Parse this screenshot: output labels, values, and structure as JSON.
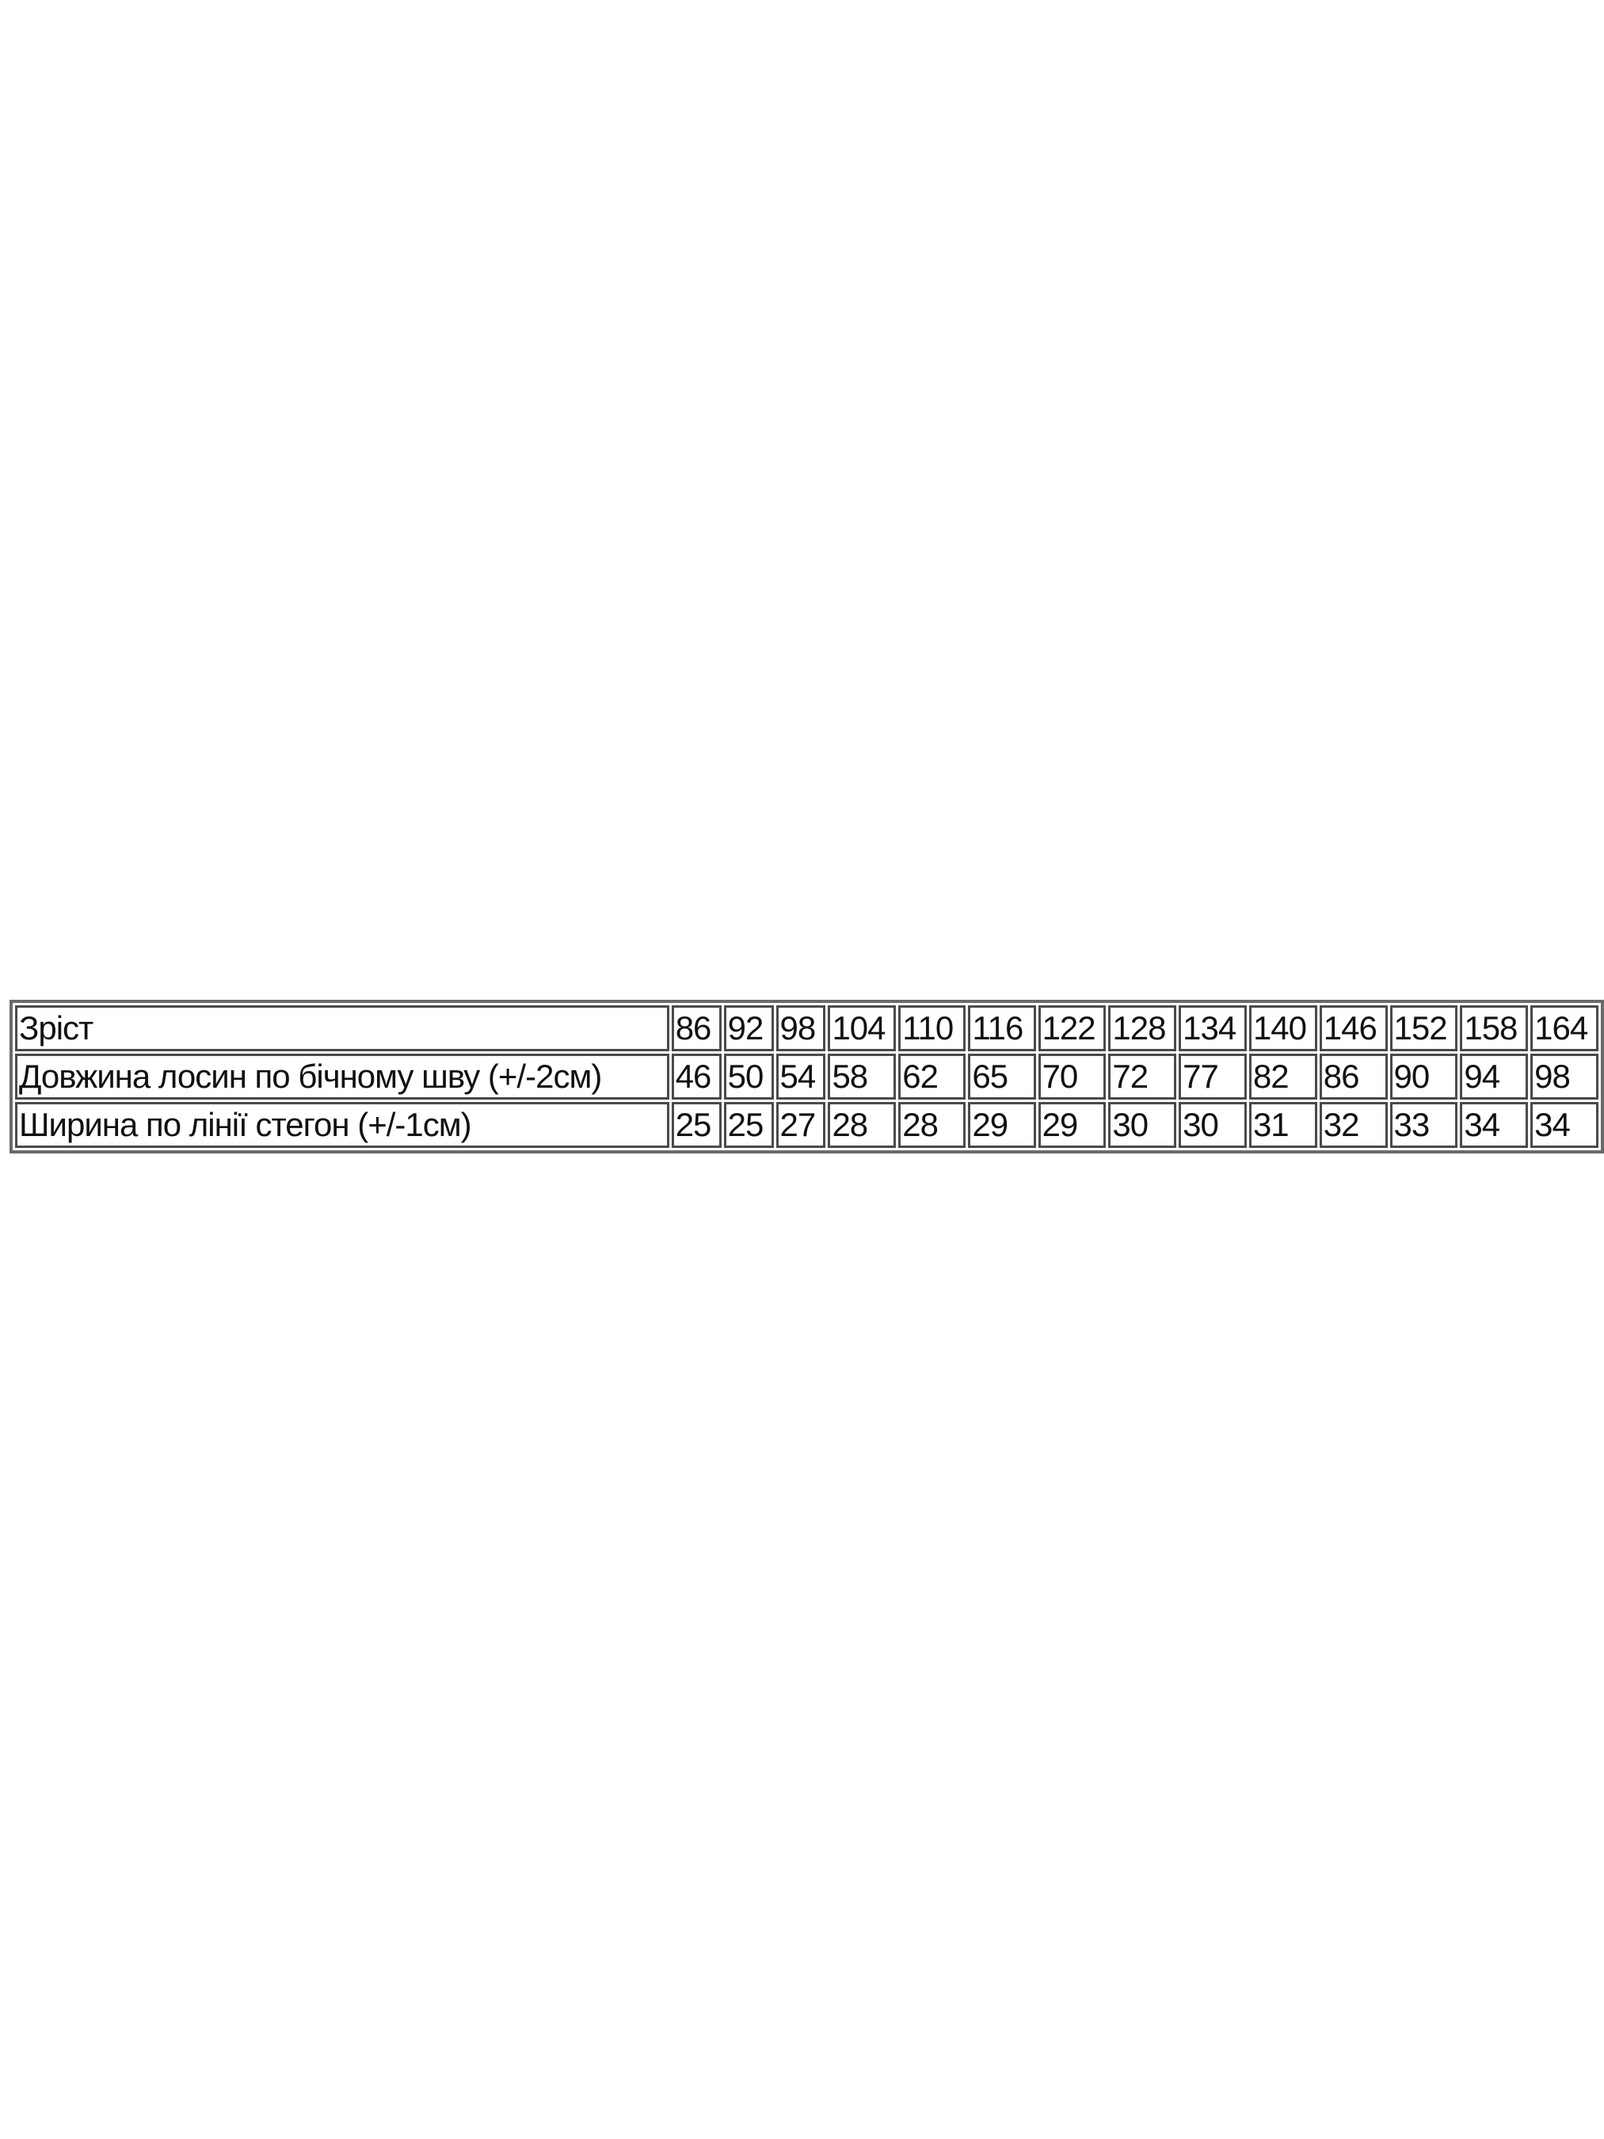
{
  "size_table": {
    "columns": [
      "86",
      "92",
      "98",
      "104",
      "110",
      "116",
      "122",
      "128",
      "134",
      "140",
      "146",
      "152",
      "158",
      "164"
    ],
    "rows": [
      {
        "label": "Зріст",
        "values": [
          "86",
          "92",
          "98",
          "104",
          "110",
          "116",
          "122",
          "128",
          "134",
          "140",
          "146",
          "152",
          "158",
          "164"
        ]
      },
      {
        "label": "Довжина лосин по бічному шву (+/-2см)",
        "values": [
          "46",
          "50",
          "54",
          "58",
          "62",
          "65",
          "70",
          "72",
          "77",
          "82",
          "86",
          "90",
          "94",
          "98"
        ]
      },
      {
        "label": "Ширина по лінії стегон (+/-1см)",
        "values": [
          "25",
          "25",
          "27",
          "28",
          "28",
          "29",
          "29",
          "30",
          "30",
          "31",
          "32",
          "33",
          "34",
          "34"
        ]
      }
    ]
  }
}
